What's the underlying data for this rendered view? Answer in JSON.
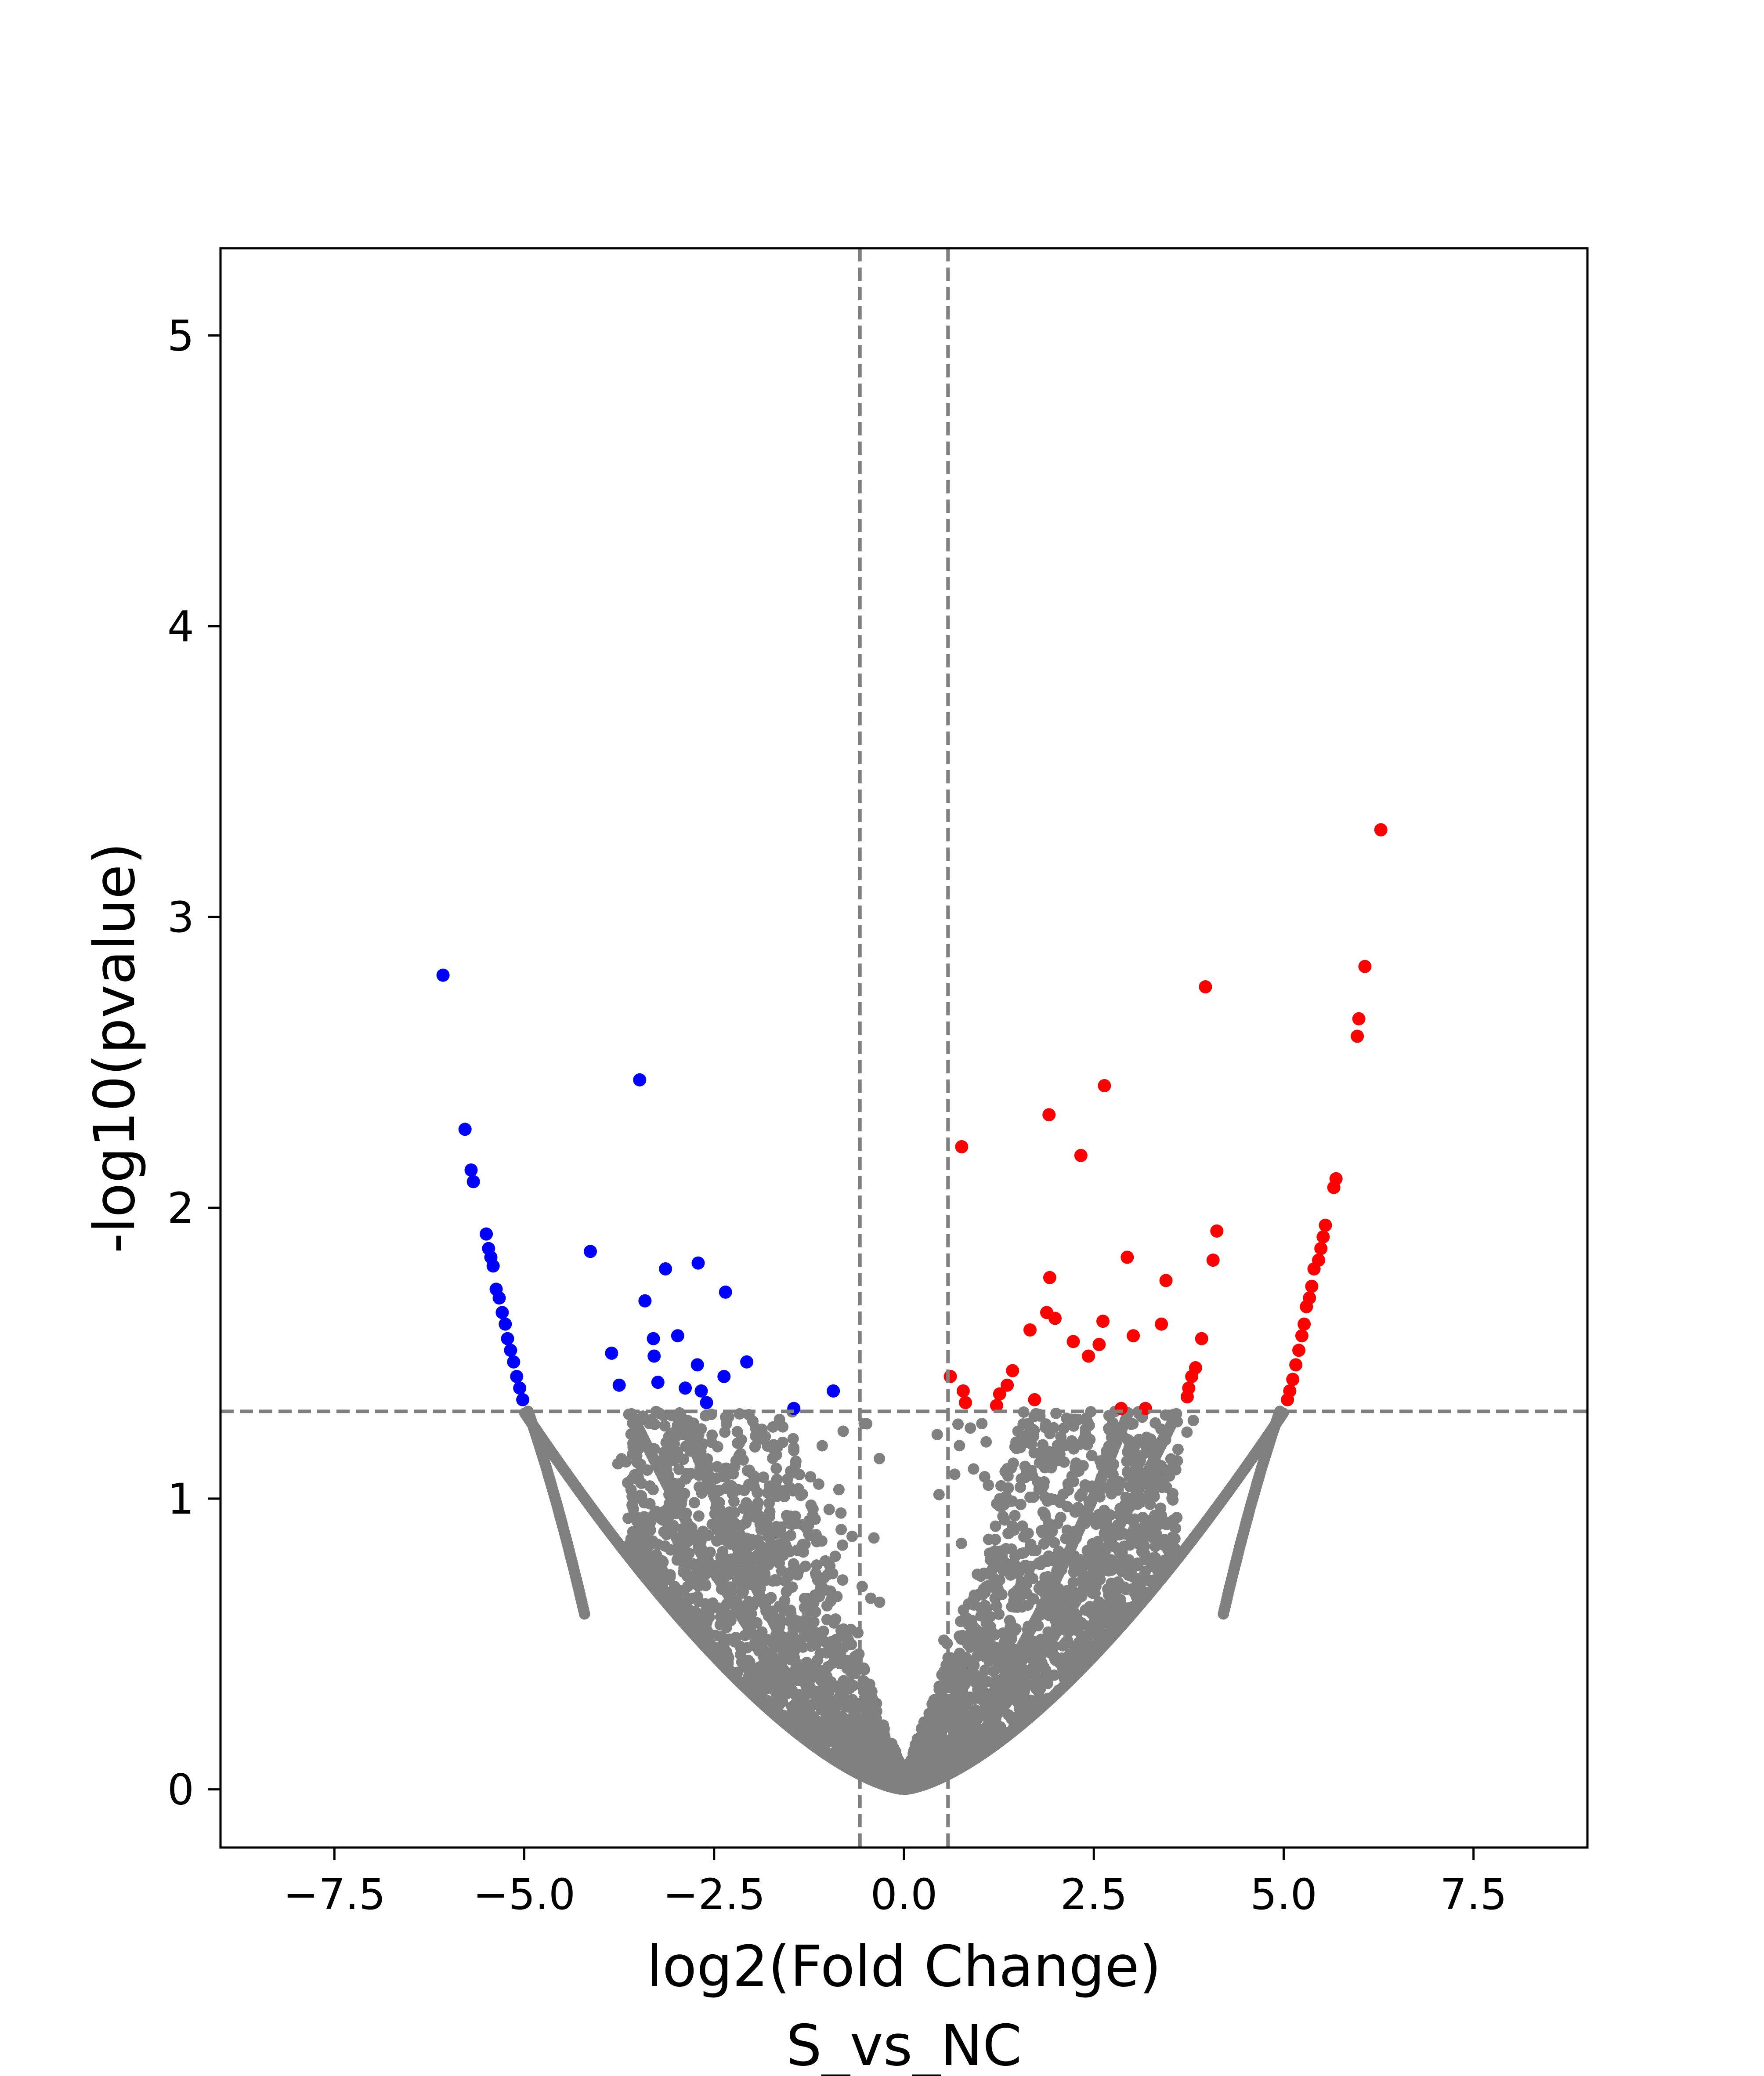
{
  "chart_data": {
    "type": "scatter",
    "xlabel": "log2(Fold Change)",
    "ylabel": "-log10(pvalue)",
    "subtitle": "S_vs_NC",
    "xlim": [
      -9,
      9
    ],
    "ylim": [
      -0.2,
      5.3
    ],
    "x_ticks": [
      -7.5,
      -5.0,
      -2.5,
      0.0,
      2.5,
      5.0,
      7.5
    ],
    "x_tick_labels": [
      "−7.5",
      "−5.0",
      "−2.5",
      "0.0",
      "2.5",
      "5.0",
      "7.5"
    ],
    "y_ticks": [
      0,
      1,
      2,
      3,
      4,
      5
    ],
    "y_tick_labels": [
      "0",
      "1",
      "2",
      "3",
      "4",
      "5"
    ],
    "grid": false,
    "thresholds": {
      "x": [
        -0.58,
        0.58
      ],
      "y": 1.3
    },
    "colors": {
      "up": "#ff0000",
      "down": "#0000ff",
      "ns": "#808080",
      "threshold_line": "#808080"
    },
    "series": [
      {
        "category": "up",
        "points": [
          [
            6.28,
            3.3
          ],
          [
            6.07,
            2.83
          ],
          [
            5.99,
            2.65
          ],
          [
            5.97,
            2.59
          ],
          [
            5.69,
            2.1
          ],
          [
            5.66,
            2.07
          ],
          [
            5.55,
            1.94
          ],
          [
            5.52,
            1.9
          ],
          [
            5.49,
            1.86
          ],
          [
            5.46,
            1.82
          ],
          [
            5.4,
            1.79
          ],
          [
            5.37,
            1.73
          ],
          [
            5.34,
            1.69
          ],
          [
            5.3,
            1.66
          ],
          [
            5.27,
            1.6
          ],
          [
            5.24,
            1.56
          ],
          [
            5.2,
            1.51
          ],
          [
            5.16,
            1.46
          ],
          [
            5.12,
            1.41
          ],
          [
            5.08,
            1.37
          ],
          [
            5.05,
            1.34
          ],
          [
            3.97,
            2.76
          ],
          [
            2.64,
            2.42
          ],
          [
            1.91,
            2.32
          ],
          [
            2.33,
            2.18
          ],
          [
            0.76,
            2.21
          ],
          [
            4.12,
            1.92
          ],
          [
            2.94,
            1.83
          ],
          [
            4.07,
            1.82
          ],
          [
            1.92,
            1.76
          ],
          [
            3.45,
            1.75
          ],
          [
            1.88,
            1.64
          ],
          [
            1.99,
            1.62
          ],
          [
            2.62,
            1.61
          ],
          [
            3.39,
            1.6
          ],
          [
            1.66,
            1.58
          ],
          [
            3.02,
            1.56
          ],
          [
            3.92,
            1.55
          ],
          [
            2.23,
            1.54
          ],
          [
            2.57,
            1.53
          ],
          [
            2.43,
            1.49
          ],
          [
            3.84,
            1.45
          ],
          [
            1.43,
            1.44
          ],
          [
            3.79,
            1.42
          ],
          [
            0.61,
            1.42
          ],
          [
            1.36,
            1.39
          ],
          [
            0.78,
            1.37
          ],
          [
            3.75,
            1.38
          ],
          [
            1.26,
            1.36
          ],
          [
            3.73,
            1.35
          ],
          [
            1.72,
            1.34
          ],
          [
            0.81,
            1.33
          ],
          [
            2.86,
            1.31
          ],
          [
            3.18,
            1.31
          ],
          [
            1.22,
            1.32
          ]
        ]
      },
      {
        "category": "down",
        "points": [
          [
            -6.07,
            2.8
          ],
          [
            -3.48,
            2.44
          ],
          [
            -5.78,
            2.27
          ],
          [
            -5.7,
            2.13
          ],
          [
            -5.67,
            2.09
          ],
          [
            -5.5,
            1.91
          ],
          [
            -5.47,
            1.86
          ],
          [
            -5.44,
            1.83
          ],
          [
            -5.41,
            1.8
          ],
          [
            -5.37,
            1.72
          ],
          [
            -5.33,
            1.69
          ],
          [
            -5.29,
            1.64
          ],
          [
            -5.25,
            1.6
          ],
          [
            -5.22,
            1.55
          ],
          [
            -5.18,
            1.51
          ],
          [
            -5.14,
            1.47
          ],
          [
            -5.1,
            1.42
          ],
          [
            -5.06,
            1.38
          ],
          [
            -5.02,
            1.34
          ],
          [
            -4.13,
            1.85
          ],
          [
            -2.71,
            1.81
          ],
          [
            -3.14,
            1.79
          ],
          [
            -2.35,
            1.71
          ],
          [
            -3.41,
            1.68
          ],
          [
            -2.98,
            1.56
          ],
          [
            -3.3,
            1.55
          ],
          [
            -3.85,
            1.5
          ],
          [
            -3.29,
            1.49
          ],
          [
            -2.07,
            1.47
          ],
          [
            -2.72,
            1.46
          ],
          [
            -2.37,
            1.42
          ],
          [
            -3.24,
            1.4
          ],
          [
            -3.75,
            1.39
          ],
          [
            -2.88,
            1.38
          ],
          [
            -2.67,
            1.37
          ],
          [
            -2.6,
            1.33
          ],
          [
            -0.93,
            1.37
          ],
          [
            -1.45,
            1.31
          ]
        ]
      }
    ],
    "ns_points": 3000
  }
}
